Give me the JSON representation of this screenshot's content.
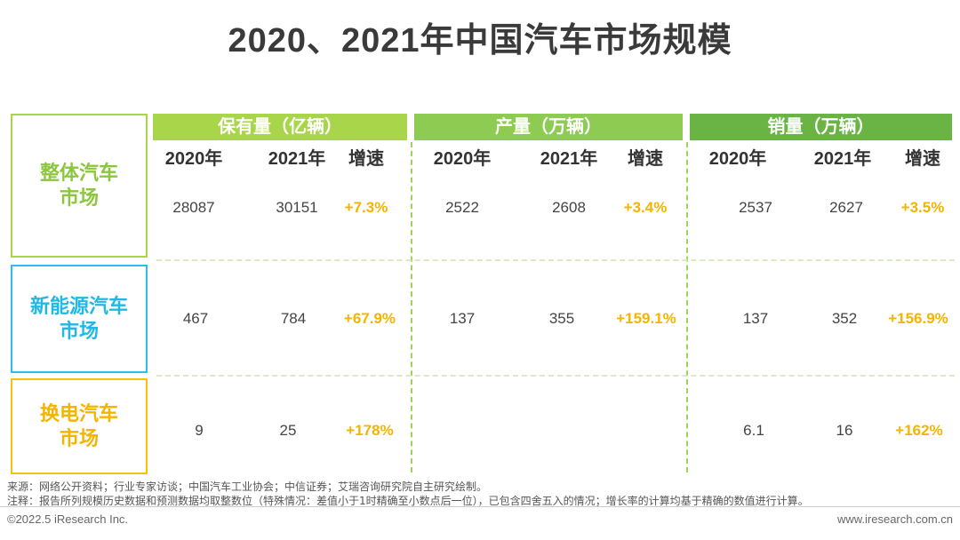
{
  "title": "2020、2021年中国汽车市场规模",
  "colors": {
    "green_light": "#a9d54b",
    "green_mid": "#8dcb52",
    "green_dark": "#6ab445",
    "blue": "#2cc0e8",
    "yellow": "#f4c20d",
    "growth": "#f4b400"
  },
  "groups": [
    {
      "label": "保有量（亿辆）",
      "cols": [
        "2020年",
        "2021年",
        "增速"
      ]
    },
    {
      "label": "产量（万辆）",
      "cols": [
        "2020年",
        "2021年",
        "增速"
      ]
    },
    {
      "label": "销量（万辆）",
      "cols": [
        "2020年",
        "2021年",
        "增速"
      ]
    }
  ],
  "rows": [
    {
      "label": "整体汽车\n市场",
      "values": [
        "28087",
        "30151",
        "+7.3%",
        "2522",
        "2608",
        "+3.4%",
        "2537",
        "2627",
        "+3.5%"
      ]
    },
    {
      "label": "新能源汽车\n市场",
      "values": [
        "467",
        "784",
        "+67.9%",
        "137",
        "355",
        "+159.1%",
        "137",
        "352",
        "+156.9%"
      ]
    },
    {
      "label": "换电汽车\n市场",
      "values": [
        "9",
        "25",
        "+178%",
        "",
        "",
        "",
        "6.1",
        "16",
        "+162%"
      ]
    }
  ],
  "notes": {
    "source": "来源：网络公开资料；行业专家访谈；中国汽车工业协会；中信证券；艾瑞咨询研究院自主研究绘制。",
    "remark": "注释：报告所列规模历史数据和预测数据均取整数位（特殊情况：差值小于1时精确至小数点后一位），已包含四舍五入的情况；增长率的计算均基于精确的数值进行计算。"
  },
  "footer": {
    "copyright": "©2022.5 iResearch Inc.",
    "website": "www.iresearch.com.cn"
  }
}
